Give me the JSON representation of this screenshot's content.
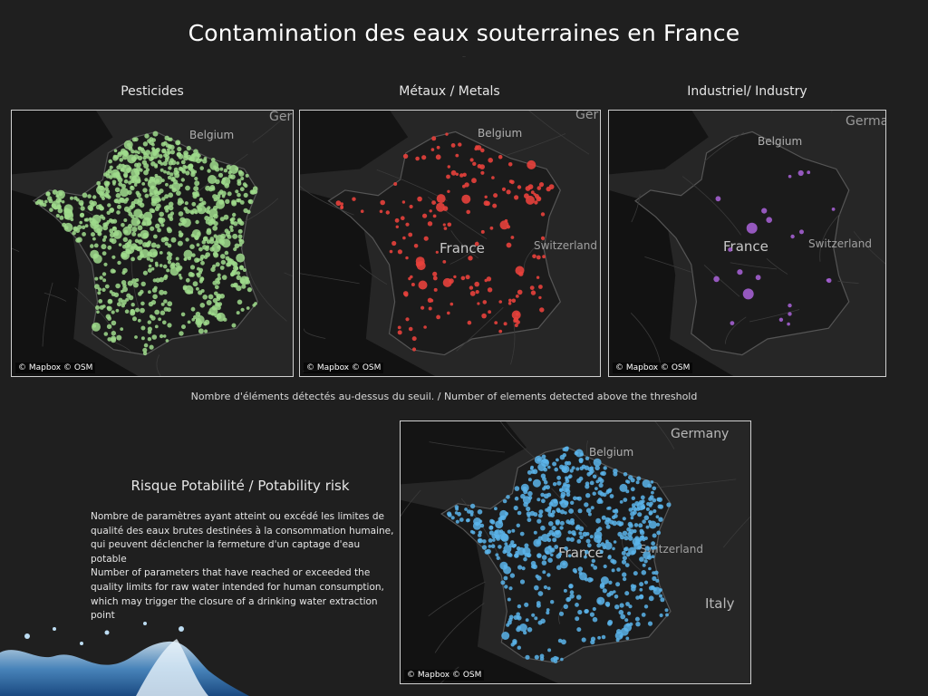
{
  "header": {
    "title": "Contamination des eaux souterraines en France",
    "subtitle": ".."
  },
  "panels": [
    {
      "label": "Pesticides",
      "color": "#9fdb8c",
      "place_labels": [
        "Belgium",
        "Ger"
      ],
      "credit": "© Mapbox © OSM"
    },
    {
      "label": "Métaux / Metals",
      "color": "#e8413c",
      "place_labels": [
        "Belgium",
        "France",
        "Switzerland",
        "Ger"
      ],
      "credit": "© Mapbox © OSM"
    },
    {
      "label": "Industriel/ Industry",
      "color": "#a35fd0",
      "place_labels": [
        "Belgium",
        "France",
        "Switzerland",
        "Germa"
      ],
      "credit": "© Mapbox © OSM"
    }
  ],
  "caption": "Nombre d'éléments détectés au-dessus du seuil. / Number of elements detected above the threshold",
  "potability": {
    "title": "Risque Potabilité /  Potability risk",
    "description_fr": "Nombre de paramètres ayant atteint ou excédé les limites de qualité des eaux brutes destinées à la consommation humaine, qui peuvent déclencher la fermeture d'un captage d'eau potable",
    "description_en": "Number of parameters that have reached or exceeded the quality limits for raw water intended for human consumption, which may trigger the closure of a drinking water extraction point",
    "map": {
      "color": "#5ab4ea",
      "place_labels": [
        "Germany",
        "Belgium",
        "France",
        "Switzerland",
        "Italy"
      ],
      "credit": "© Mapbox © OSM"
    }
  }
}
